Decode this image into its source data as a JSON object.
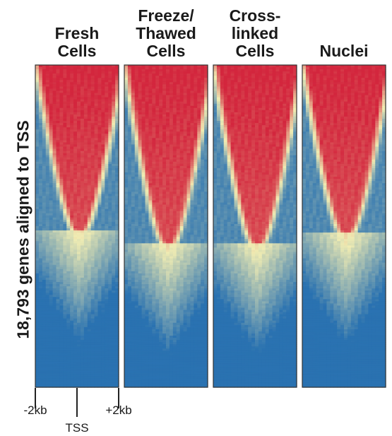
{
  "chart_data": {
    "type": "heatmap",
    "ylabel": "18,793 genes aligned to TSS",
    "panels": [
      {
        "title_lines": [
          "Fresh",
          "Cells"
        ]
      },
      {
        "title_lines": [
          "Freeze/",
          "Thawed",
          "Cells"
        ]
      },
      {
        "title_lines": [
          "Cross-",
          "linked",
          "Cells"
        ]
      },
      {
        "title_lines": [
          "Nuclei"
        ]
      }
    ],
    "x_ticks": [
      "-2kb",
      "TSS",
      "+2kb"
    ],
    "x_range_kb": [
      -2,
      2
    ],
    "colors": {
      "low": "#2a73b3",
      "mid": "#f3efb5",
      "high": "#d6283f"
    }
  }
}
